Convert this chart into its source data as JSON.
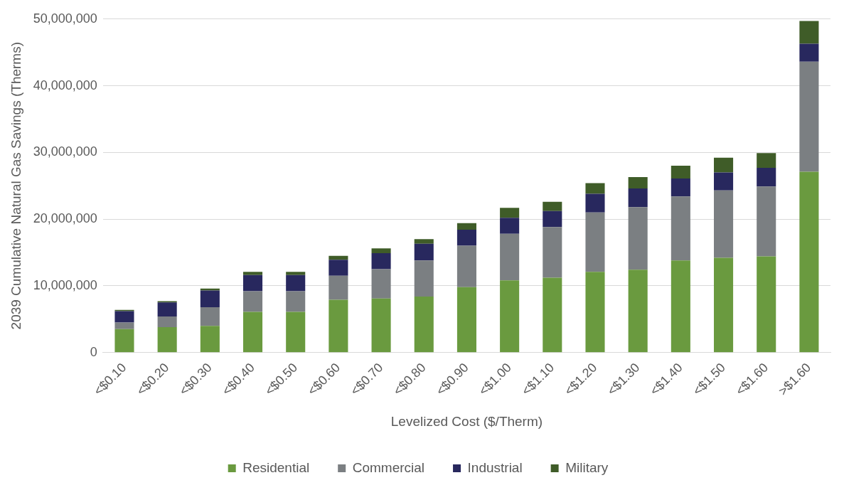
{
  "chart_data": {
    "type": "bar",
    "stacked": true,
    "xlabel": "Levelized Cost ($/Therm)",
    "ylabel": "2039 Cumulative Natural Gas Savings (Therms)",
    "categories": [
      "<$0.10",
      "<$0.20",
      "<$0.30",
      "<$0.40",
      "<$0.50",
      "<$0.60",
      "<$0.70",
      "<$0.80",
      "<$0.90",
      "<$1.00",
      "<$1.10",
      "<$1.20",
      "<$1.30",
      "<$1.40",
      "<$1.50",
      "<$1.60",
      ">$1.60"
    ],
    "series": [
      {
        "name": "Residential",
        "color": "#6a9a3f",
        "values": [
          3500000,
          3800000,
          4000000,
          6100000,
          6100000,
          7900000,
          8100000,
          8400000,
          9800000,
          10800000,
          11200000,
          12100000,
          12400000,
          13800000,
          14200000,
          14400000,
          27100000
        ]
      },
      {
        "name": "Commercial",
        "color": "#7b7f82",
        "values": [
          1000000,
          1600000,
          2800000,
          3100000,
          3100000,
          3600000,
          4400000,
          5400000,
          6200000,
          7000000,
          7600000,
          8900000,
          9400000,
          9600000,
          10100000,
          10500000,
          16500000
        ]
      },
      {
        "name": "Industrial",
        "color": "#28285e",
        "values": [
          1700000,
          2100000,
          2500000,
          2400000,
          2400000,
          2400000,
          2400000,
          2500000,
          2400000,
          2400000,
          2400000,
          2800000,
          2800000,
          2700000,
          2700000,
          2800000,
          2700000
        ]
      },
      {
        "name": "Military",
        "color": "#3f5c28",
        "values": [
          200000,
          200000,
          300000,
          500000,
          500000,
          600000,
          700000,
          700000,
          1000000,
          1500000,
          1400000,
          1600000,
          1700000,
          1900000,
          2200000,
          2200000,
          3400000
        ]
      }
    ],
    "ylim": [
      0,
      50000000
    ],
    "yticks": [
      {
        "value": 0,
        "label": "0"
      },
      {
        "value": 10000000,
        "label": "10,000,000"
      },
      {
        "value": 20000000,
        "label": "20,000,000"
      },
      {
        "value": 30000000,
        "label": "30,000,000"
      },
      {
        "value": 40000000,
        "label": "40,000,000"
      },
      {
        "value": 50000000,
        "label": "50,000,000"
      }
    ],
    "grid": "y",
    "legend": "bottom"
  }
}
